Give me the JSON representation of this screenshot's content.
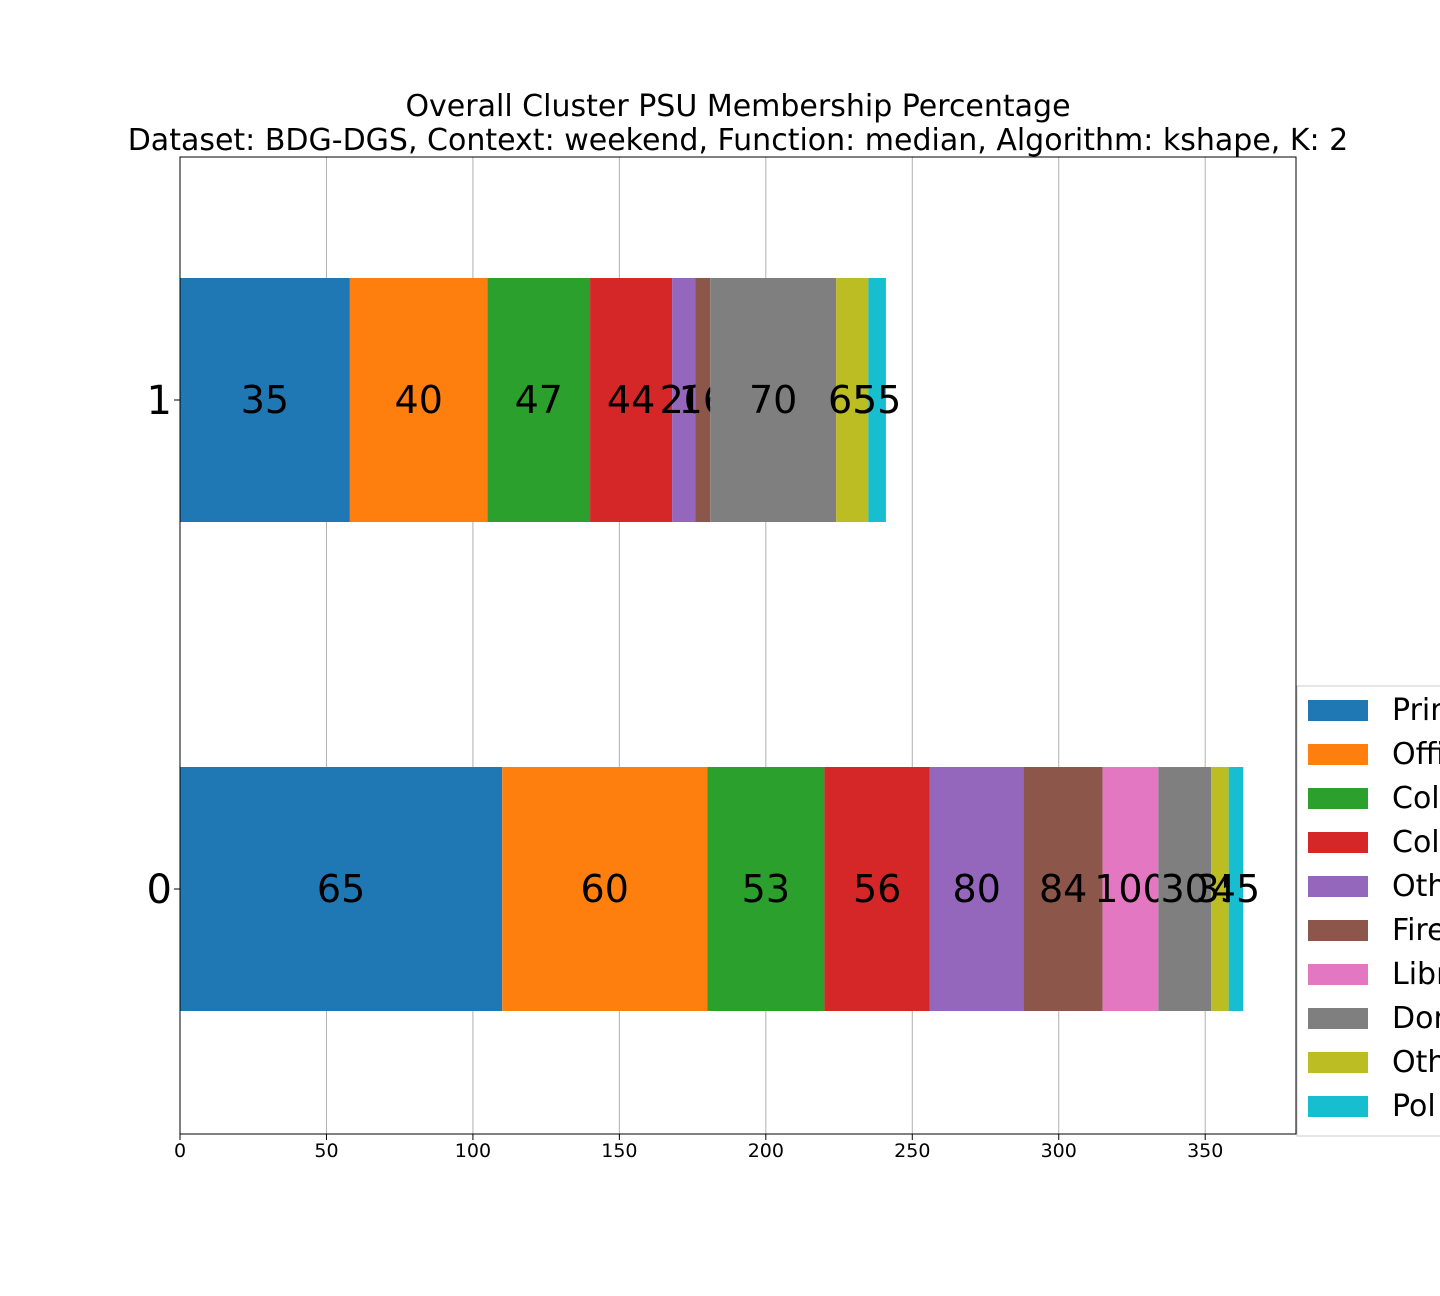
{
  "chart_data": {
    "type": "bar",
    "orientation": "horizontal",
    "stacked": true,
    "title": "Overall Cluster  PSU Membership Percentage",
    "subtitle": "Dataset: BDG-DGS, Context: weekend, Function: median, Algorithm: kshape, K: 2",
    "xlabel": "",
    "ylabel": "",
    "xlim": [
      0,
      381
    ],
    "x_ticks": [
      0,
      50,
      100,
      150,
      200,
      250,
      300,
      350
    ],
    "categories": [
      "0",
      "1"
    ],
    "grid": "x",
    "legend_position": "right",
    "series": [
      {
        "name": "Prim",
        "color": "#1f77b4",
        "values": [
          110,
          58
        ],
        "labels": [
          "65",
          "35"
        ]
      },
      {
        "name": "Offi",
        "color": "#ff7f0e",
        "values": [
          70,
          47
        ],
        "labels": [
          "60",
          "40"
        ]
      },
      {
        "name": "Col",
        "color": "#2ca02c",
        "values": [
          40,
          35
        ],
        "labels": [
          "53",
          "47"
        ]
      },
      {
        "name": "Col",
        "color": "#d62728",
        "values": [
          36,
          28
        ],
        "labels": [
          "56",
          "44"
        ]
      },
      {
        "name": "Oth",
        "color": "#9467bd",
        "values": [
          32,
          8
        ],
        "labels": [
          "80",
          "20"
        ]
      },
      {
        "name": "Fire",
        "color": "#8c564b",
        "values": [
          27,
          5
        ],
        "labels": [
          "84",
          "16"
        ]
      },
      {
        "name": "Libr",
        "color": "#e377c2",
        "values": [
          19,
          0
        ],
        "labels": [
          "100",
          ""
        ]
      },
      {
        "name": "Dor",
        "color": "#7f7f7f",
        "values": [
          18,
          43
        ],
        "labels": [
          "30",
          "70"
        ]
      },
      {
        "name": "Oth",
        "color": "#bcbd22",
        "values": [
          6,
          11
        ],
        "labels": [
          "35",
          "65"
        ]
      },
      {
        "name": "Pol",
        "color": "#17becf",
        "values": [
          5,
          6
        ],
        "labels": [
          "45",
          "55"
        ]
      }
    ]
  }
}
